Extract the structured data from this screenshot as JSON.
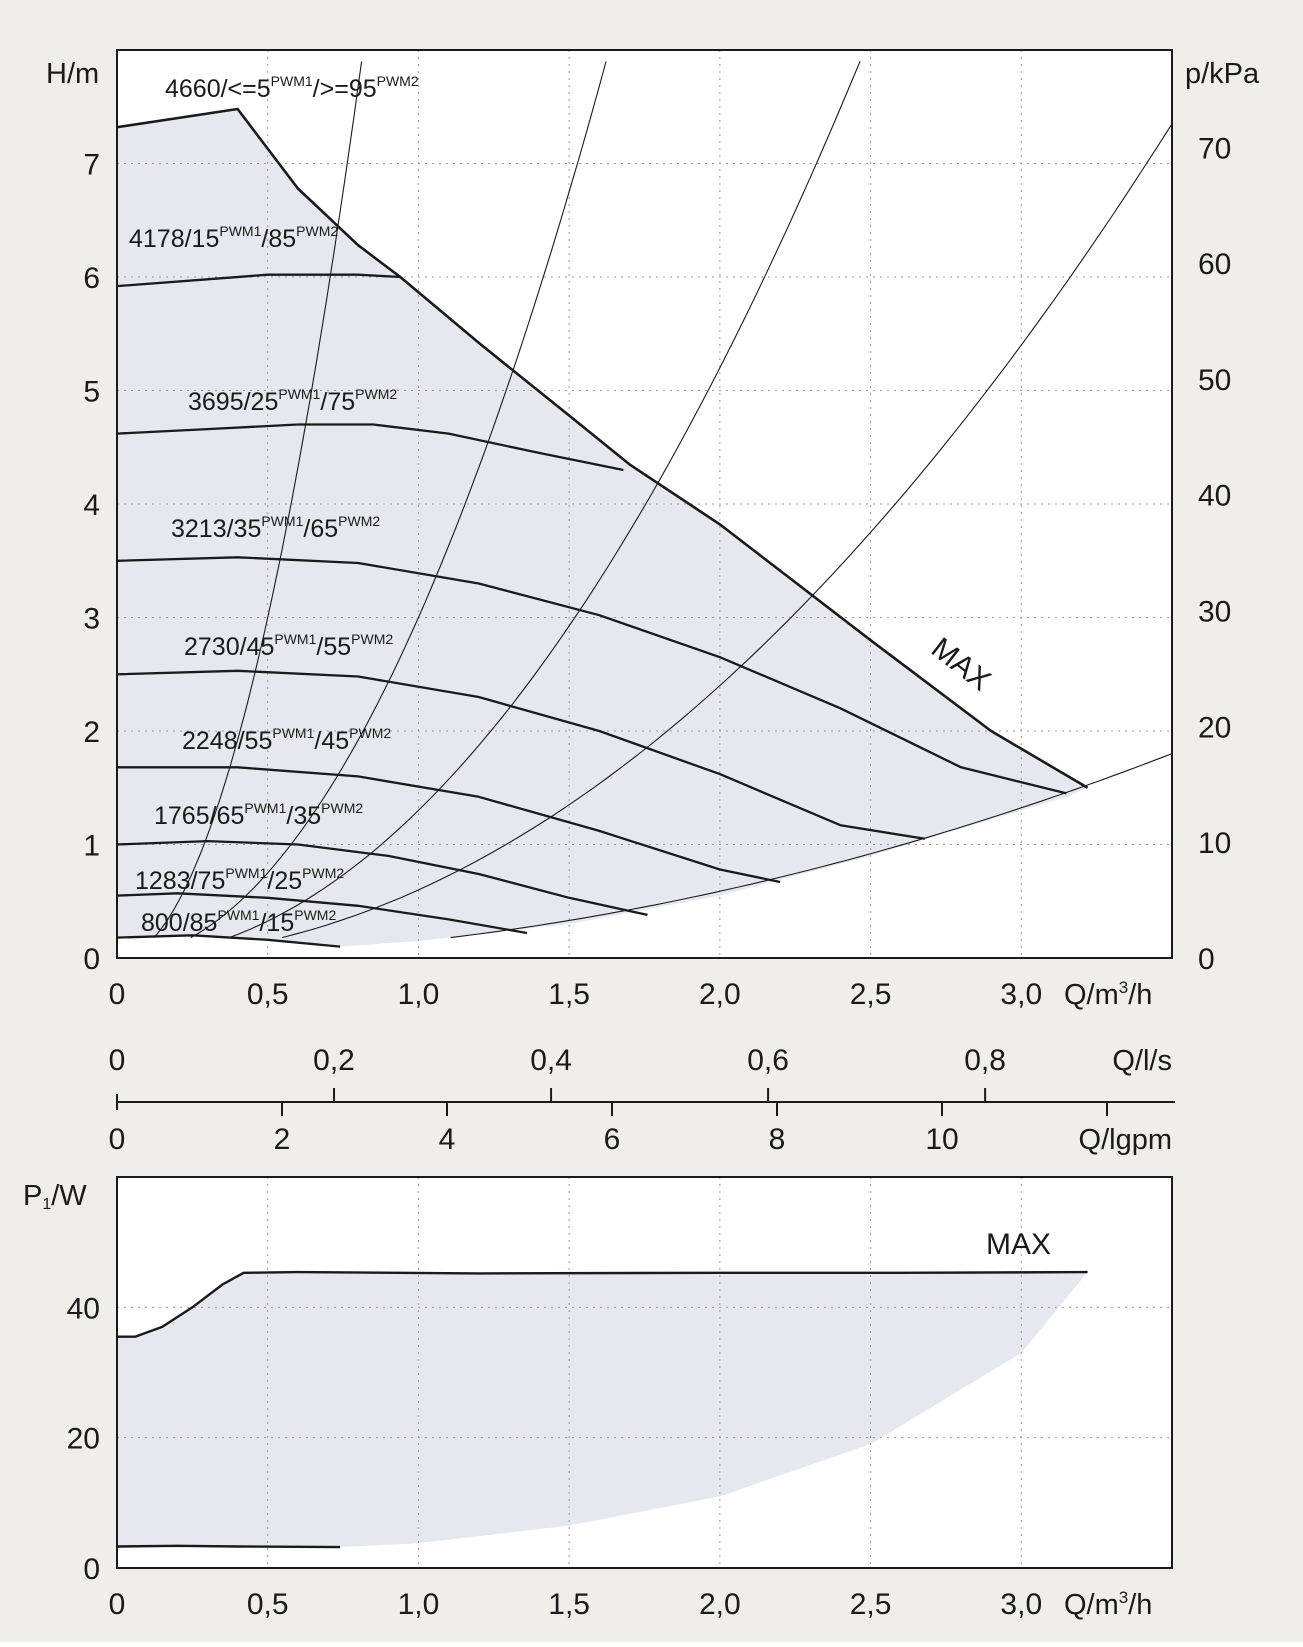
{
  "colors": {
    "page_background": "#efeeea",
    "plot_background": "#ffffff",
    "envelope_fill": "#e5e8ee",
    "curve": "#1a1a1a",
    "grid": "#9a9a9a",
    "text": "#1a1a1a"
  },
  "chart_data": [
    {
      "type": "line",
      "title": "",
      "xlabel": "Q/m³/h",
      "ylabel": "H/m",
      "ylabel_right": "p/kPa",
      "xlim": [
        0,
        3.5
      ],
      "ylim": [
        0,
        8
      ],
      "ylim_right": [
        0,
        78.4
      ],
      "xticks": [
        "0",
        "0,5",
        "1,0",
        "1,5",
        "2,0",
        "2,5",
        "3,0"
      ],
      "xtick_values": [
        0,
        0.5,
        1.0,
        1.5,
        2.0,
        2.5,
        3.0
      ],
      "yticks": [
        "0",
        "1",
        "2",
        "3",
        "4",
        "5",
        "6",
        "7"
      ],
      "ytick_values": [
        0,
        1,
        2,
        3,
        4,
        5,
        6,
        7
      ],
      "yticks_right": [
        "0",
        "10",
        "20",
        "30",
        "40",
        "50",
        "60",
        "70"
      ],
      "ytick_right_values": [
        0,
        10,
        20,
        30,
        40,
        50,
        60,
        70
      ],
      "grid": "dotted",
      "xlabel_parts": {
        "main": "Q/m",
        "sup": "3",
        "tail": "/h"
      },
      "secondary_axes": [
        {
          "label": "Q/l/s",
          "ticks": [
            "0",
            "0,2",
            "0,4",
            "0,6",
            "0,8"
          ],
          "values": [
            0,
            0.2,
            0.4,
            0.6,
            0.8
          ],
          "unit_factor_m3h": 3.6
        },
        {
          "label": "Q/lgpm",
          "ticks": [
            "0",
            "2",
            "4",
            "6",
            "8",
            "10"
          ],
          "values": [
            0,
            2,
            4,
            6,
            8,
            10
          ],
          "unit_factor_m3h": 0.2728
        }
      ],
      "envelope": {
        "upper": [
          [
            0,
            7.32
          ],
          [
            0.2,
            7.4
          ],
          [
            0.4,
            7.48
          ],
          [
            0.6,
            6.78
          ],
          [
            0.8,
            6.28
          ],
          [
            0.94,
            6.0
          ],
          [
            1.2,
            5.42
          ],
          [
            1.5,
            4.78
          ],
          [
            1.7,
            4.35
          ],
          [
            2.0,
            3.82
          ],
          [
            2.5,
            2.8
          ],
          [
            2.9,
            2.0
          ],
          [
            3.22,
            1.5
          ]
        ],
        "lower": [
          [
            0.74,
            0.1
          ],
          [
            1.0,
            0.15
          ],
          [
            1.5,
            0.3
          ],
          [
            2.0,
            0.55
          ],
          [
            2.5,
            0.9
          ],
          [
            3.0,
            1.3
          ],
          [
            3.15,
            1.42
          ]
        ]
      },
      "series": [
        {
          "name": "MAX",
          "label_parts": {
            "text": "MAX"
          },
          "values": [
            [
              0,
              7.32
            ],
            [
              0.2,
              7.4
            ],
            [
              0.4,
              7.48
            ],
            [
              0.6,
              6.78
            ],
            [
              0.8,
              6.28
            ],
            [
              0.94,
              6.0
            ],
            [
              1.2,
              5.42
            ],
            [
              1.5,
              4.78
            ],
            [
              1.7,
              4.35
            ],
            [
              2.0,
              3.82
            ],
            [
              2.5,
              2.8
            ],
            [
              2.9,
              2.0
            ],
            [
              3.22,
              1.5
            ]
          ]
        },
        {
          "name": "4178/15PWM1/85PWM2",
          "label_parts": {
            "a": "4178/15",
            "sup1": "PWM1",
            "b": "/85",
            "sup2": "PWM2"
          },
          "values": [
            [
              0,
              5.92
            ],
            [
              0.3,
              5.98
            ],
            [
              0.5,
              6.02
            ],
            [
              0.8,
              6.02
            ],
            [
              0.94,
              6.0
            ]
          ]
        },
        {
          "name": "3695/25PWM1/75PWM2",
          "label_parts": {
            "a": "3695/25",
            "sup1": "PWM1",
            "b": "/75",
            "sup2": "PWM2"
          },
          "values": [
            [
              0,
              4.62
            ],
            [
              0.3,
              4.66
            ],
            [
              0.6,
              4.7
            ],
            [
              0.85,
              4.7
            ],
            [
              1.1,
              4.62
            ],
            [
              1.4,
              4.45
            ],
            [
              1.68,
              4.3
            ]
          ]
        },
        {
          "name": "3213/35PWM1/65PWM2",
          "label_parts": {
            "a": "3213/35",
            "sup1": "PWM1",
            "b": "/65",
            "sup2": "PWM2"
          },
          "values": [
            [
              0,
              3.5
            ],
            [
              0.4,
              3.53
            ],
            [
              0.8,
              3.48
            ],
            [
              1.2,
              3.3
            ],
            [
              1.6,
              3.02
            ],
            [
              2.0,
              2.65
            ],
            [
              2.4,
              2.2
            ],
            [
              2.8,
              1.68
            ],
            [
              3.15,
              1.45
            ]
          ]
        },
        {
          "name": "2730/45PWM1/55PWM2",
          "label_parts": {
            "a": "2730/45",
            "sup1": "PWM1",
            "b": "/55",
            "sup2": "PWM2"
          },
          "values": [
            [
              0,
              2.5
            ],
            [
              0.4,
              2.53
            ],
            [
              0.8,
              2.48
            ],
            [
              1.2,
              2.3
            ],
            [
              1.6,
              2.0
            ],
            [
              2.0,
              1.62
            ],
            [
              2.4,
              1.17
            ],
            [
              2.68,
              1.05
            ]
          ]
        },
        {
          "name": "2248/55PWM1/45PWM2",
          "label_parts": {
            "a": "2248/55",
            "sup1": "PWM1",
            "b": "/45",
            "sup2": "PWM2"
          },
          "values": [
            [
              0,
              1.68
            ],
            [
              0.4,
              1.68
            ],
            [
              0.8,
              1.6
            ],
            [
              1.2,
              1.42
            ],
            [
              1.6,
              1.12
            ],
            [
              2.0,
              0.78
            ],
            [
              2.2,
              0.67
            ]
          ]
        },
        {
          "name": "1765/65PWM1/35PWM2",
          "label_parts": {
            "a": "1765/65",
            "sup1": "PWM1",
            "b": "/35",
            "sup2": "PWM2"
          },
          "values": [
            [
              0,
              1.0
            ],
            [
              0.3,
              1.03
            ],
            [
              0.6,
              1.0
            ],
            [
              0.9,
              0.9
            ],
            [
              1.2,
              0.74
            ],
            [
              1.5,
              0.53
            ],
            [
              1.76,
              0.38
            ]
          ]
        },
        {
          "name": "1283/75PWM1/25PWM2",
          "label_parts": {
            "a": "1283/75",
            "sup1": "PWM1",
            "b": "/25",
            "sup2": "PWM2"
          },
          "values": [
            [
              0,
              0.55
            ],
            [
              0.2,
              0.57
            ],
            [
              0.5,
              0.53
            ],
            [
              0.8,
              0.46
            ],
            [
              1.1,
              0.34
            ],
            [
              1.36,
              0.22
            ]
          ]
        },
        {
          "name": "800/85PWM1/15PWM2",
          "label_parts": {
            "a": "800/85",
            "sup1": "PWM1",
            "b": "/15",
            "sup2": "PWM2"
          },
          "values": [
            [
              0,
              0.18
            ],
            [
              0.25,
              0.2
            ],
            [
              0.5,
              0.16
            ],
            [
              0.74,
              0.1
            ]
          ]
        }
      ],
      "system_curves": [
        {
          "label_parts": {
            "a": "4660/<=5",
            "sup1": "PWM1",
            "b": "/>=95",
            "sup2": "PWM2"
          },
          "k": 12.0
        },
        {
          "k": 3.0
        },
        {
          "k": 1.3
        },
        {
          "k": 0.6
        },
        {
          "k": 0.147
        }
      ]
    },
    {
      "type": "line",
      "title": "",
      "xlabel": "Q/m³/h",
      "ylabel": "P1/W",
      "ylabel_parts": {
        "main": "P",
        "sub": "1",
        "tail": "/W"
      },
      "xlim": [
        0,
        3.5
      ],
      "ylim": [
        0,
        60
      ],
      "xticks": [
        "0",
        "0,5",
        "1,0",
        "1,5",
        "2,0",
        "2,5",
        "3,0"
      ],
      "xtick_values": [
        0,
        0.5,
        1.0,
        1.5,
        2.0,
        2.5,
        3.0
      ],
      "yticks": [
        "0",
        "20",
        "40"
      ],
      "ytick_values": [
        0,
        20,
        40
      ],
      "grid": "dotted",
      "xlabel_parts": {
        "main": "Q/m",
        "sup": "3",
        "tail": "/h"
      },
      "envelope": {
        "upper": [
          [
            0,
            35.5
          ],
          [
            0.06,
            35.5
          ],
          [
            0.15,
            37.0
          ],
          [
            0.25,
            40.0
          ],
          [
            0.35,
            43.5
          ],
          [
            0.42,
            45.3
          ],
          [
            0.6,
            45.4
          ],
          [
            1.2,
            45.2
          ],
          [
            2.0,
            45.3
          ],
          [
            2.6,
            45.3
          ],
          [
            3.22,
            45.4
          ]
        ],
        "lower": [
          [
            0,
            3.3
          ],
          [
            0.2,
            3.4
          ],
          [
            0.4,
            3.3
          ],
          [
            0.74,
            3.2
          ],
          [
            1.0,
            3.8
          ],
          [
            1.5,
            6.5
          ],
          [
            2.0,
            11.0
          ],
          [
            2.5,
            19.0
          ],
          [
            3.0,
            33.0
          ],
          [
            3.22,
            45.4
          ]
        ]
      },
      "series": [
        {
          "name": "MAX",
          "label_parts": {
            "text": "MAX"
          },
          "values": [
            [
              0,
              35.5
            ],
            [
              0.06,
              35.5
            ],
            [
              0.15,
              37.0
            ],
            [
              0.25,
              40.0
            ],
            [
              0.35,
              43.5
            ],
            [
              0.42,
              45.3
            ],
            [
              0.6,
              45.4
            ],
            [
              1.2,
              45.2
            ],
            [
              2.0,
              45.3
            ],
            [
              2.6,
              45.3
            ],
            [
              3.22,
              45.4
            ]
          ]
        },
        {
          "name": "",
          "values": [
            [
              0,
              3.3
            ],
            [
              0.2,
              3.4
            ],
            [
              0.4,
              3.3
            ],
            [
              0.74,
              3.2
            ]
          ]
        }
      ]
    }
  ]
}
